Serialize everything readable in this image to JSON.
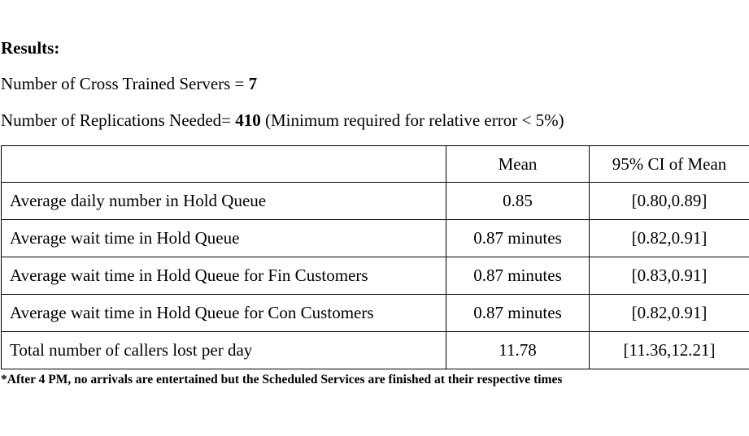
{
  "results": {
    "heading": "Results:",
    "servers_label": "Number of Cross Trained Servers = ",
    "servers_value": "7",
    "replications_label": "Number of Replications Needed= ",
    "replications_value": "410",
    "replications_note": " (Minimum required for relative error < 5%)"
  },
  "table": {
    "headers": [
      "",
      "Mean",
      "95% CI of Mean"
    ],
    "rows": [
      [
        "Average daily number in Hold Queue",
        "0.85",
        "[0.80,0.89]"
      ],
      [
        "Average wait time in Hold Queue",
        "0.87 minutes",
        "[0.82,0.91]"
      ],
      [
        "Average wait time in Hold Queue for Fin Customers",
        "0.87 minutes",
        "[0.83,0.91]"
      ],
      [
        "Average wait time in Hold Queue for Con Customers",
        "0.87 minutes",
        "[0.82,0.91]"
      ],
      [
        "Total number of callers lost per day",
        "11.78",
        "[11.36,12.21]"
      ]
    ]
  },
  "footnote": "*After 4 PM, no arrivals are entertained but the Scheduled Services are finished at their respective times"
}
